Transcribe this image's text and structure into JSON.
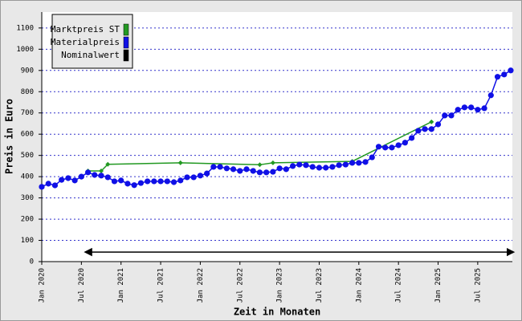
{
  "chart_data": {
    "type": "line",
    "xlabel": "Zeit in Monaten",
    "ylabel": "Preis in Euro",
    "categories": [
      "Jan 2020",
      null,
      null,
      null,
      null,
      null,
      "Jul 2020",
      null,
      null,
      null,
      null,
      null,
      "Jan 2021",
      null,
      null,
      null,
      null,
      null,
      "Jul 2021",
      null,
      null,
      null,
      null,
      null,
      "Jan 2022",
      null,
      null,
      null,
      null,
      null,
      "Jul 2022",
      null,
      null,
      null,
      null,
      null,
      "Jan 2023",
      null,
      null,
      null,
      null,
      null,
      "Jul 2023",
      null,
      null,
      null,
      null,
      null,
      "Jan 2024",
      null,
      null,
      null,
      null,
      null,
      "Jul 2024",
      null,
      null,
      null,
      null,
      null,
      "Jan 2025",
      null,
      null,
      null,
      null,
      null,
      "Jul 2025",
      null,
      null,
      null,
      null,
      null
    ],
    "series": [
      {
        "name": "Marktpreis ST",
        "color": "#229922",
        "x": [
          "Aug 2020",
          "Oct 2020",
          "Nov 2020",
          "Oct 2021",
          "Oct 2022",
          "Dec 2022",
          "Dec 2023",
          "Dec 2024"
        ],
        "values": [
          427,
          427,
          458,
          465,
          456,
          465,
          472,
          658
        ]
      },
      {
        "name": "Materialpreis",
        "color": "#1010e6",
        "values": [
          352,
          367,
          359,
          385,
          393,
          382,
          400,
          420,
          408,
          405,
          397,
          378,
          382,
          367,
          360,
          370,
          378,
          378,
          378,
          378,
          374,
          382,
          397,
          397,
          405,
          415,
          446,
          446,
          439,
          435,
          427,
          435,
          427,
          420,
          420,
          423,
          439,
          435,
          450,
          457,
          454,
          446,
          442,
          442,
          446,
          454,
          457,
          465,
          465,
          469,
          491,
          541,
          537,
          537,
          548,
          560,
          582,
          616,
          624,
          624,
          646,
          688,
          688,
          715,
          726,
          726,
          715,
          722,
          783,
          870,
          881,
          900
        ]
      },
      {
        "name": "Nominalwert",
        "color": "#000000",
        "x": [
          "Aug 2020",
          "Dec 2025"
        ],
        "values": [
          45,
          45
        ]
      }
    ],
    "ylim": [
      0,
      1175
    ],
    "yticks": [
      0,
      100,
      200,
      300,
      400,
      500,
      600,
      700,
      800,
      900,
      1000,
      1100
    ],
    "grid": true,
    "legend": "upper left"
  }
}
